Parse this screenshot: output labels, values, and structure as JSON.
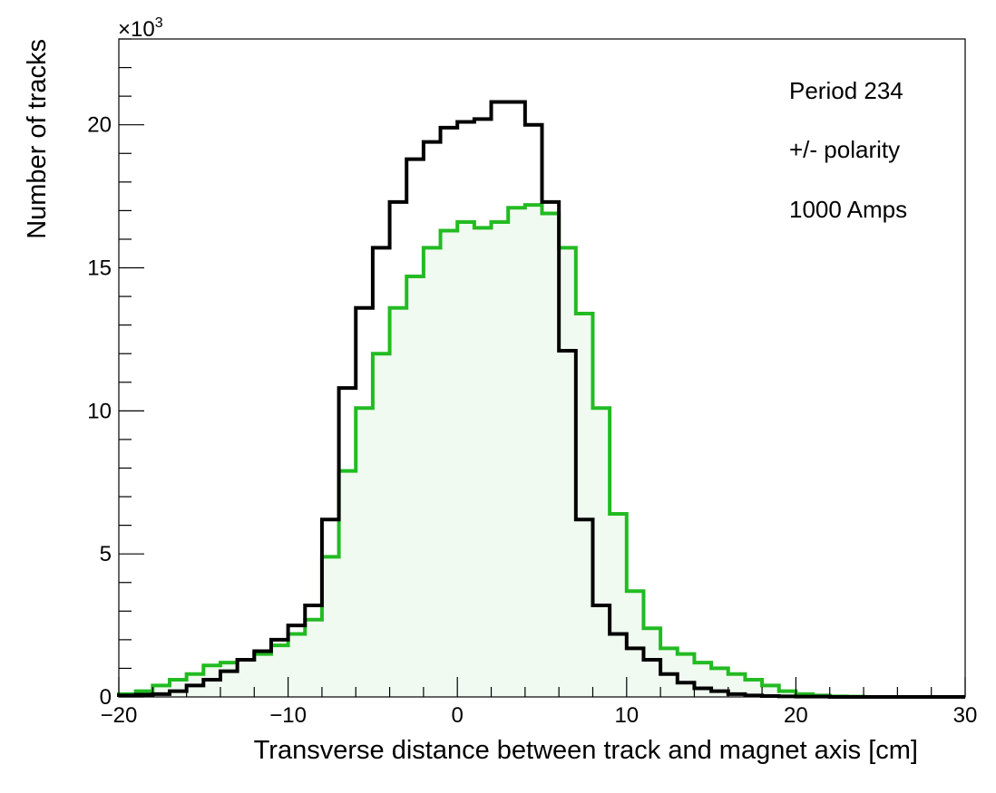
{
  "chart_data": {
    "type": "histogram",
    "xlabel": "Transverse distance between track and magnet axis [cm]",
    "ylabel": "Number of tracks",
    "y_multiplier_label": "×10",
    "y_multiplier_exponent": "3",
    "xlim": [
      -20,
      30
    ],
    "ylim": [
      0,
      23
    ],
    "x_ticks": [
      -20,
      -10,
      0,
      10,
      20,
      30
    ],
    "x_tick_labels": [
      "−20",
      "−10",
      "0",
      "10",
      "20",
      "30"
    ],
    "y_ticks": [
      0,
      5,
      10,
      15,
      20
    ],
    "y_tick_labels": [
      "0",
      "5",
      "10",
      "15",
      "20"
    ],
    "annotations": [
      "Period 234",
      "+/- polarity",
      "1000 Amps"
    ],
    "bin_edges_start": -20,
    "bin_width": 1,
    "series": [
      {
        "color": "#000000",
        "fill": "none",
        "values": [
          0.05,
          0.08,
          0.1,
          0.2,
          0.4,
          0.6,
          0.9,
          1.3,
          1.6,
          2.0,
          2.5,
          3.2,
          6.2,
          10.8,
          13.6,
          15.7,
          17.3,
          18.8,
          19.4,
          19.9,
          20.1,
          20.2,
          20.8,
          20.8,
          20.0,
          17.3,
          12.1,
          6.2,
          3.2,
          2.2,
          1.7,
          1.3,
          0.8,
          0.5,
          0.3,
          0.2,
          0.1,
          0.05,
          0.03,
          0.02,
          0.01,
          0.01,
          0.0,
          0.0,
          0.0,
          0.0,
          0.0,
          0.0,
          0.0,
          0.0
        ]
      },
      {
        "color": "#22bb22",
        "fill": "#f0faf0",
        "values": [
          0.1,
          0.2,
          0.4,
          0.6,
          0.8,
          1.1,
          1.2,
          1.3,
          1.5,
          1.8,
          2.2,
          2.7,
          4.9,
          7.9,
          10.1,
          12.0,
          13.6,
          14.7,
          15.7,
          16.3,
          16.6,
          16.4,
          16.6,
          17.1,
          17.2,
          16.9,
          15.7,
          13.4,
          10.1,
          6.4,
          3.7,
          2.4,
          1.7,
          1.5,
          1.2,
          1.0,
          0.8,
          0.6,
          0.4,
          0.2,
          0.1,
          0.05,
          0.02,
          0.01,
          0.0,
          0.0,
          0.0,
          0.0,
          0.0,
          0.0
        ]
      }
    ]
  }
}
